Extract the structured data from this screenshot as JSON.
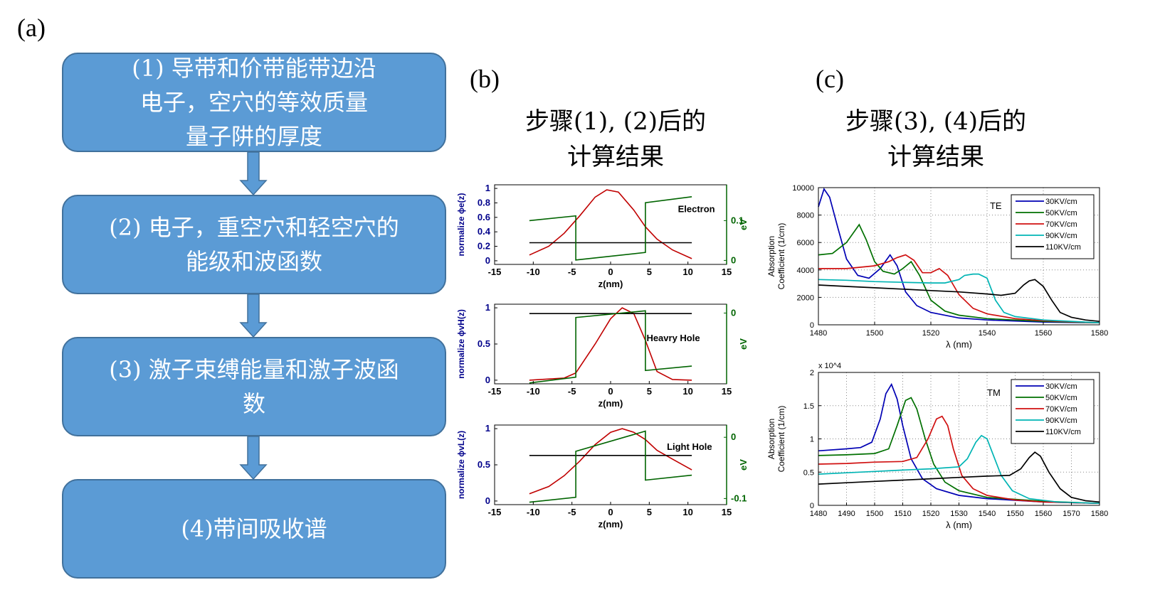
{
  "panel_labels": {
    "a": "(a)",
    "b": "(b)",
    "c": "(c)"
  },
  "flow": {
    "steps": [
      {
        "lines": [
          "(1) 导带和价带能带边沿",
          "电子，空穴的等效质量",
          "量子阱的厚度"
        ]
      },
      {
        "lines": [
          "(2) 电子，重空穴和轻空穴的",
          "能级和波函数"
        ]
      },
      {
        "lines": [
          "(3) 激子束缚能量和激子波函",
          "数"
        ]
      },
      {
        "lines": [
          "(4)带间吸收谱"
        ]
      }
    ],
    "colors": {
      "fill": "#5b9bd5",
      "border": "#41719c",
      "text": "#ffffff"
    }
  },
  "heading_b": {
    "line1": "步骤(1), (2)后的",
    "line2": "计算结果"
  },
  "heading_c": {
    "line1": "步骤(3), (4)后的",
    "line2": "计算结果"
  },
  "chart_data": [
    {
      "type": "line",
      "panel": "b-top",
      "xlabel": "z(nm)",
      "ylabel": "normalize ϕe(z)",
      "y2label": "eV",
      "annotation": "Electron",
      "xlim": [
        -15,
        15
      ],
      "xticks": [
        -15,
        -10,
        -5,
        0,
        5,
        10,
        15
      ],
      "ylim": [
        -0.05,
        1.05
      ],
      "yticks": [
        0,
        0.2,
        0.4,
        0.6,
        0.8,
        1
      ],
      "y2lim": [
        -0.01,
        0.19
      ],
      "y2ticks": [
        0,
        0.1
      ],
      "series": [
        {
          "axis": "left",
          "color": "#c00000",
          "x": [
            -10.5,
            -8,
            -6,
            -4,
            -2,
            -0.5,
            1,
            3,
            4.5,
            6,
            8,
            10.5
          ],
          "y": [
            0.08,
            0.2,
            0.38,
            0.62,
            0.88,
            0.98,
            0.95,
            0.7,
            0.47,
            0.3,
            0.15,
            0.03
          ]
        },
        {
          "axis": "left",
          "color": "#000000",
          "x": [
            -10.5,
            10.5
          ],
          "y": [
            0.25,
            0.25
          ]
        },
        {
          "axis": "right",
          "color": "#006400",
          "x": [
            -10.5,
            -4.5,
            -4.5,
            4.5,
            4.5,
            10.5
          ],
          "y": [
            0.1,
            0.112,
            0.001,
            0.02,
            0.145,
            0.16
          ]
        }
      ]
    },
    {
      "type": "line",
      "panel": "b-mid",
      "xlabel": "z(nm)",
      "ylabel": "normalize ϕvH(z)",
      "y2label": "eV",
      "annotation": "Heavry Hole",
      "xlim": [
        -15,
        15
      ],
      "xticks": [
        -15,
        -10,
        -5,
        0,
        5,
        10,
        15
      ],
      "ylim": [
        -0.05,
        1.05
      ],
      "yticks": [
        0,
        0.5,
        1
      ],
      "y2lim": [
        -0.16,
        0.02
      ],
      "y2ticks": [
        0
      ],
      "series": [
        {
          "axis": "left",
          "color": "#c00000",
          "x": [
            -10.5,
            -6,
            -4.5,
            -2,
            0,
            1.5,
            3,
            4.5,
            6,
            8,
            10.5
          ],
          "y": [
            0,
            0.03,
            0.1,
            0.5,
            0.85,
            1.0,
            0.92,
            0.55,
            0.12,
            0.01,
            0
          ]
        },
        {
          "axis": "left",
          "color": "#000000",
          "x": [
            -10.5,
            10.5
          ],
          "y": [
            0.92,
            0.92
          ]
        },
        {
          "axis": "right",
          "color": "#006400",
          "x": [
            -10.5,
            -4.5,
            -4.5,
            4.5,
            4.5,
            10.5
          ],
          "y": [
            -0.158,
            -0.145,
            -0.01,
            0.005,
            -0.13,
            -0.12
          ]
        }
      ]
    },
    {
      "type": "line",
      "panel": "b-bot",
      "xlabel": "z(nm)",
      "ylabel": "normalize ϕvL(z)",
      "y2label": "eV",
      "annotation": "Light Hole",
      "xlim": [
        -15,
        15
      ],
      "xticks": [
        -15,
        -10,
        -5,
        0,
        5,
        10,
        15
      ],
      "ylim": [
        -0.05,
        1.05
      ],
      "yticks": [
        0,
        0.5,
        1
      ],
      "y2lim": [
        -0.11,
        0.02
      ],
      "y2ticks": [
        -0.1,
        0
      ],
      "series": [
        {
          "axis": "left",
          "color": "#c00000",
          "x": [
            -10.5,
            -8,
            -6,
            -4,
            -2,
            0,
            1.5,
            3,
            4.5,
            6,
            8,
            10.5
          ],
          "y": [
            0.1,
            0.2,
            0.35,
            0.55,
            0.78,
            0.95,
            1.0,
            0.95,
            0.85,
            0.7,
            0.58,
            0.43
          ]
        },
        {
          "axis": "left",
          "color": "#000000",
          "x": [
            -10.5,
            10.5
          ],
          "y": [
            0.63,
            0.63
          ]
        },
        {
          "axis": "right",
          "color": "#006400",
          "x": [
            -10.5,
            -4.5,
            -4.5,
            4.5,
            4.5,
            10.5
          ],
          "y": [
            -0.106,
            -0.098,
            -0.023,
            0.01,
            -0.07,
            -0.062
          ]
        }
      ]
    },
    {
      "type": "line",
      "panel": "c-top",
      "xlabel": "λ (nm)",
      "ylabel": "Absorption Coefficient (1/cm)",
      "annotation": "TE",
      "xlim": [
        1480,
        1580
      ],
      "xticks": [
        1480,
        1500,
        1520,
        1540,
        1560,
        1580
      ],
      "ylim": [
        0,
        10000
      ],
      "yticks": [
        0,
        2000,
        4000,
        6000,
        8000,
        10000
      ],
      "grid": true,
      "legend_position": "top-right",
      "series": [
        {
          "name": "30KV/cm",
          "color": "#0000b4",
          "x": [
            1480,
            1482,
            1484,
            1487,
            1490,
            1494,
            1498,
            1502,
            1505.5,
            1508,
            1511,
            1515,
            1520,
            1530,
            1540,
            1560,
            1580
          ],
          "y": [
            8600,
            9900,
            9300,
            7000,
            4800,
            3600,
            3400,
            4100,
            5100,
            4300,
            2400,
            1400,
            900,
            500,
            350,
            200,
            150
          ]
        },
        {
          "name": "50KV/cm",
          "color": "#007000",
          "x": [
            1480,
            1485,
            1490,
            1494.5,
            1497,
            1500,
            1503,
            1507,
            1510,
            1513,
            1516,
            1520,
            1525,
            1530,
            1540,
            1560,
            1580
          ],
          "y": [
            5100,
            5200,
            6000,
            7300,
            6200,
            4600,
            3900,
            3700,
            4100,
            4600,
            3600,
            1800,
            1000,
            700,
            450,
            250,
            150
          ]
        },
        {
          "name": "70KV/cm",
          "color": "#d01010",
          "x": [
            1480,
            1490,
            1500,
            1505,
            1508,
            1511,
            1514,
            1517,
            1520,
            1523,
            1526,
            1530,
            1535,
            1540,
            1550,
            1560,
            1580
          ],
          "y": [
            4100,
            4100,
            4300,
            4600,
            4900,
            5100,
            4700,
            3800,
            3800,
            4100,
            3600,
            2200,
            1200,
            800,
            450,
            300,
            150
          ]
        },
        {
          "name": "90KV/cm",
          "color": "#00b4b4",
          "x": [
            1480,
            1490,
            1500,
            1510,
            1520,
            1525,
            1530,
            1532,
            1535,
            1537,
            1540,
            1543,
            1546,
            1550,
            1560,
            1580
          ],
          "y": [
            3300,
            3250,
            3150,
            3100,
            3050,
            3050,
            3300,
            3600,
            3700,
            3700,
            3400,
            1800,
            900,
            600,
            350,
            150
          ]
        },
        {
          "name": "110KV/cm",
          "color": "#000000",
          "x": [
            1480,
            1490,
            1500,
            1510,
            1520,
            1530,
            1540,
            1545,
            1550,
            1553,
            1555,
            1557,
            1560,
            1563,
            1566,
            1570,
            1575,
            1580
          ],
          "y": [
            2900,
            2800,
            2700,
            2600,
            2500,
            2400,
            2250,
            2150,
            2300,
            2900,
            3200,
            3300,
            2800,
            1800,
            900,
            550,
            350,
            250
          ]
        }
      ]
    },
    {
      "type": "line",
      "panel": "c-bot",
      "xlabel": "λ (nm)",
      "ylabel": "Absorption Coefficient (1/cm)",
      "annotation": "TM",
      "y_multiplier": "x 10^4",
      "xlim": [
        1480,
        1580
      ],
      "xticks": [
        1480,
        1490,
        1500,
        1510,
        1520,
        1530,
        1540,
        1550,
        1560,
        1570,
        1580
      ],
      "ylim": [
        0,
        2
      ],
      "yticks": [
        0,
        0.5,
        1,
        1.5,
        2
      ],
      "grid": true,
      "legend_position": "top-right",
      "series": [
        {
          "name": "30KV/cm",
          "color": "#0000b4",
          "x": [
            1480,
            1490,
            1495,
            1499,
            1502,
            1504,
            1506,
            1508,
            1510,
            1513,
            1517,
            1522,
            1530,
            1540,
            1560,
            1580
          ],
          "y": [
            0.82,
            0.85,
            0.87,
            0.95,
            1.3,
            1.68,
            1.82,
            1.6,
            1.2,
            0.7,
            0.4,
            0.25,
            0.15,
            0.1,
            0.05,
            0.03
          ]
        },
        {
          "name": "50KV/cm",
          "color": "#007000",
          "x": [
            1480,
            1490,
            1500,
            1505,
            1508,
            1511,
            1513,
            1515,
            1518,
            1521,
            1525,
            1530,
            1540,
            1560,
            1580
          ],
          "y": [
            0.75,
            0.76,
            0.78,
            0.85,
            1.2,
            1.58,
            1.62,
            1.45,
            1.0,
            0.62,
            0.35,
            0.22,
            0.12,
            0.06,
            0.03
          ]
        },
        {
          "name": "70KV/cm",
          "color": "#d01010",
          "x": [
            1480,
            1490,
            1500,
            1510,
            1515,
            1519,
            1522,
            1524,
            1526,
            1528,
            1531,
            1535,
            1540,
            1550,
            1560,
            1580
          ],
          "y": [
            0.62,
            0.63,
            0.65,
            0.66,
            0.72,
            1.0,
            1.3,
            1.34,
            1.2,
            0.85,
            0.45,
            0.25,
            0.15,
            0.08,
            0.05,
            0.03
          ]
        },
        {
          "name": "90KV/cm",
          "color": "#00b4b4",
          "x": [
            1480,
            1490,
            1500,
            1510,
            1520,
            1530,
            1533,
            1536,
            1538,
            1540,
            1542,
            1545,
            1549,
            1555,
            1565,
            1580
          ],
          "y": [
            0.47,
            0.49,
            0.51,
            0.53,
            0.55,
            0.58,
            0.7,
            0.95,
            1.05,
            1.0,
            0.78,
            0.45,
            0.22,
            0.1,
            0.05,
            0.03
          ]
        },
        {
          "name": "110KV/cm",
          "color": "#000000",
          "x": [
            1480,
            1490,
            1500,
            1510,
            1520,
            1530,
            1540,
            1548,
            1552,
            1555,
            1557,
            1559,
            1562,
            1566,
            1570,
            1575,
            1580
          ],
          "y": [
            0.32,
            0.34,
            0.36,
            0.38,
            0.4,
            0.42,
            0.44,
            0.45,
            0.55,
            0.72,
            0.8,
            0.74,
            0.5,
            0.25,
            0.12,
            0.07,
            0.05
          ]
        }
      ]
    }
  ]
}
